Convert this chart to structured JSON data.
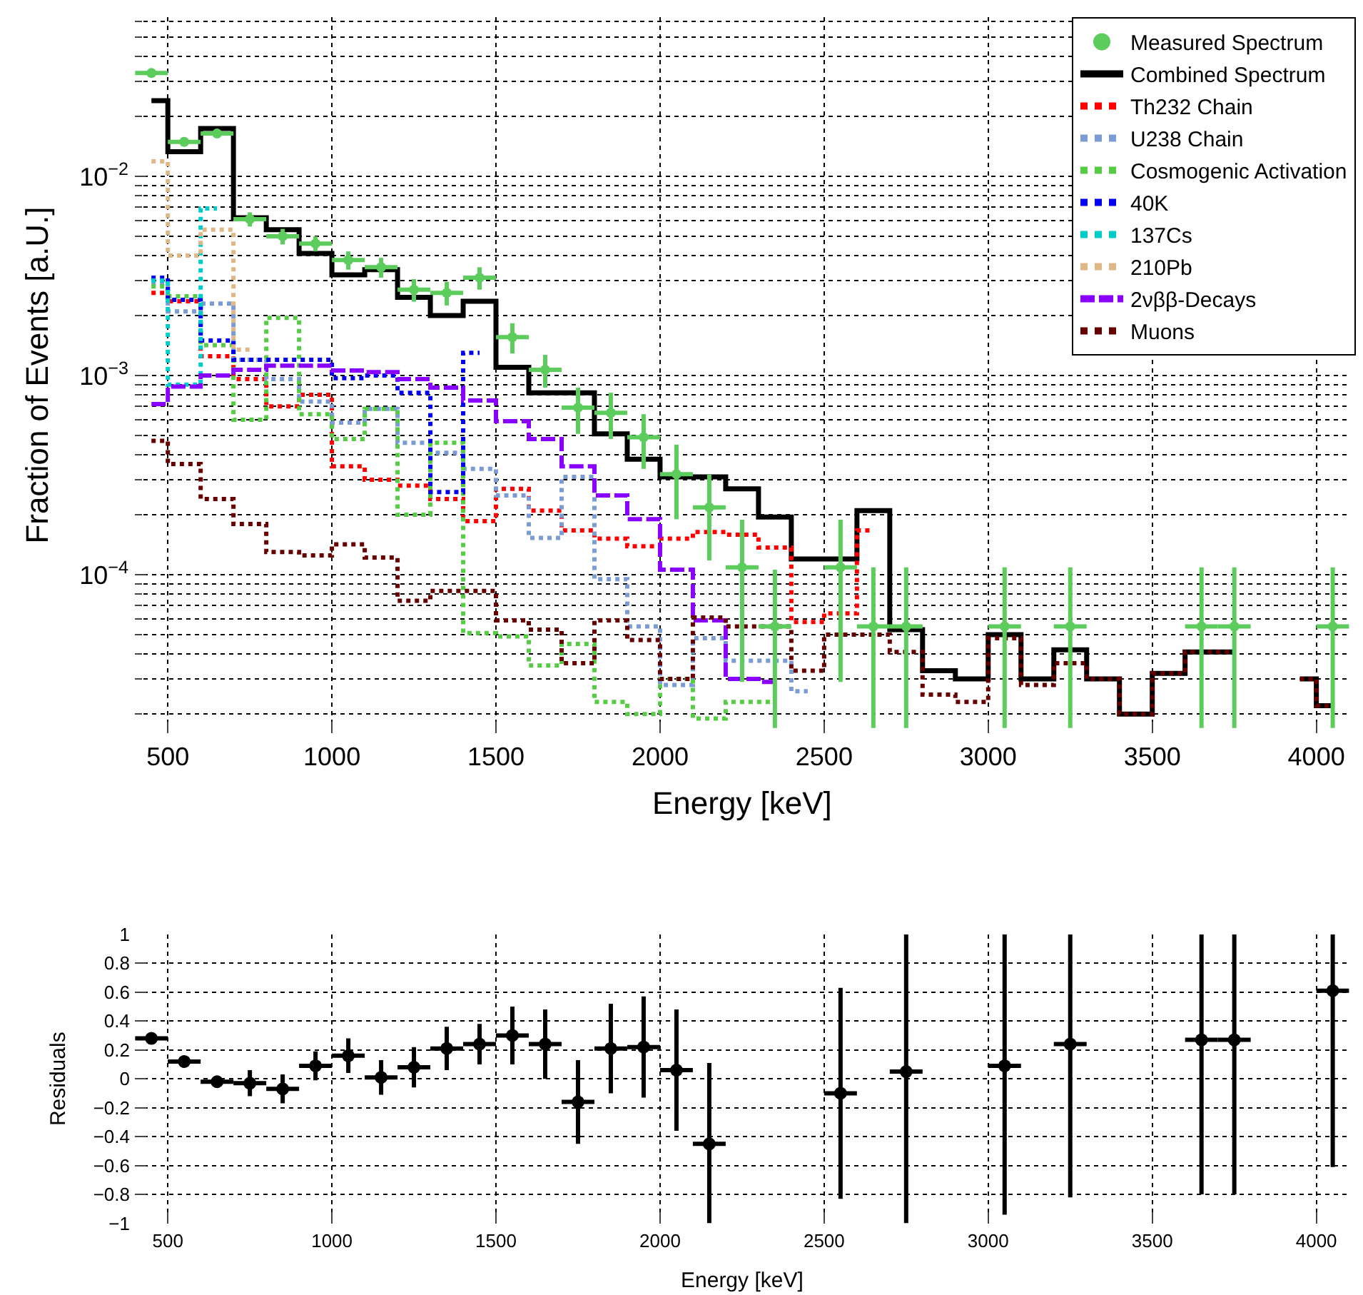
{
  "chart_data": [
    {
      "type": "step",
      "xlabel": "Energy [keV]",
      "ylabel": "Fraction of Events [a.U.]",
      "log": true,
      "grid": true,
      "legend": "top right",
      "xlim": [
        400,
        4100
      ],
      "xticks": [
        500,
        1000,
        1500,
        2000,
        2500,
        3000,
        3500,
        4000
      ],
      "ylim": [
        1.6e-05,
        0.063
      ],
      "yticks": [
        {
          "value": 0.0001,
          "label": "10$^{−4}$"
        },
        {
          "value": 0.001,
          "label": "10$^{−3}$"
        },
        {
          "value": 0.01,
          "label": "10$^{−2}$"
        }
      ],
      "x": [
        450,
        550,
        650,
        750,
        850,
        950,
        1050,
        1150,
        1250,
        1350,
        1450,
        1550,
        1650,
        1750,
        1850,
        1950,
        2050,
        2150,
        2250,
        2350,
        2450,
        2550,
        2650,
        2750,
        2850,
        2950,
        3050,
        3150,
        3250,
        3350,
        3450,
        3550,
        3650,
        3750,
        3850,
        3950,
        4050
      ],
      "series": [
        {
          "name": "Measured Spectrum",
          "type": "scatter",
          "marker": "circle",
          "color": "#5ccc5c",
          "values": [
            0.033,
            0.0149,
            0.0164,
            0.0061,
            0.005,
            0.0046,
            0.0038,
            0.0035,
            0.0027,
            0.0026,
            0.0031,
            0.00156,
            0.00107,
            0.00069,
            0.00065,
            0.00049,
            0.00032,
            0.000218,
            0.000109,
            5.5e-05,
            null,
            0.000109,
            5.5e-05,
            5.5e-05,
            null,
            null,
            5.5e-05,
            null,
            5.5e-05,
            null,
            null,
            null,
            5.5e-05,
            5.5e-05,
            null,
            null,
            5.5e-05
          ],
          "errors": [
            null,
            null,
            null,
            0.0005,
            0.00045,
            0.0004,
            0.0004,
            0.0004,
            0.00035,
            0.00035,
            0.0004,
            0.00027,
            0.0002,
            0.00018,
            0.00017,
            0.00015,
            0.00013,
            0.0001,
            8e-05,
            [
              1.7e-05,
              0.000106
            ],
            null,
            8e-05,
            [
              1.7e-05,
              0.000109
            ],
            [
              1.7e-05,
              0.000109
            ],
            null,
            null,
            [
              1.7e-05,
              0.000109
            ],
            null,
            [
              1.7e-05,
              0.000109
            ],
            null,
            null,
            null,
            [
              1.7e-05,
              0.000109
            ],
            [
              1.7e-05,
              0.000109
            ],
            null,
            null,
            [
              1.7e-05,
              0.000109
            ]
          ],
          "xerrors": [
            50,
            50,
            50,
            50,
            50,
            50,
            50,
            50,
            50,
            50,
            50,
            50,
            50,
            50,
            50,
            50,
            50,
            50,
            50,
            50,
            null,
            50,
            50,
            50,
            null,
            null,
            50,
            null,
            50,
            null,
            null,
            null,
            50,
            50,
            null,
            null,
            50
          ]
        },
        {
          "name": "Combined Spectrum",
          "color": "#000000",
          "line_style": "solid",
          "values": [
            0.024,
            0.0133,
            0.0174,
            0.0062,
            0.0054,
            0.0041,
            0.0032,
            0.0034,
            0.00247,
            0.002,
            0.00236,
            0.0011,
            0.00082,
            0.00082,
            0.00051,
            0.00038,
            0.00031,
            0.00031,
            0.00027,
            0.000195,
            0.00012,
            0.00012,
            0.00021,
            5.3e-05,
            3.3e-05,
            3e-05,
            5e-05,
            3e-05,
            4.2e-05,
            3e-05,
            2e-05,
            3.2e-05,
            4.1e-05,
            4.1e-05,
            null,
            3e-05,
            2.2e-05
          ]
        },
        {
          "name": "Th232 Chain",
          "color": "#ff0000",
          "line_style": "dotted",
          "values": [
            0.0026,
            0.00236,
            0.00125,
            0.00096,
            0.0007,
            0.0008,
            0.00035,
            0.0003,
            0.00028,
            0.00024,
            0.000186,
            0.00027,
            0.00021,
            0.000167,
            0.000152,
            0.000139,
            0.000152,
            0.000164,
            0.000159,
            0.000137,
            5.8e-05,
            6.4e-05,
            0.000167,
            null,
            null,
            null,
            null,
            null,
            null,
            null,
            null,
            null,
            null,
            null,
            null,
            null,
            null
          ]
        },
        {
          "name": "U238 Chain",
          "color": "#7b9bd4",
          "line_style": "dotted",
          "values": [
            0.0029,
            0.0021,
            0.0023,
            0.0012,
            0.00096,
            0.00074,
            0.00058,
            0.00068,
            0.00046,
            0.00041,
            0.00034,
            0.00025,
            0.000153,
            0.00031,
            9.5e-05,
            5.5e-05,
            2.8e-05,
            4.8e-05,
            3.7e-05,
            3.7e-05,
            2.6e-05,
            null,
            null,
            null,
            null,
            null,
            null,
            null,
            null,
            null,
            null,
            null,
            null,
            null,
            null,
            null,
            null
          ]
        },
        {
          "name": "Cosmogenic Activation",
          "color": "#55cc44",
          "line_style": "dotted",
          "values": [
            0.0028,
            0.0025,
            0.00142,
            0.0006,
            0.00195,
            0.00064,
            0.00048,
            0.00068,
            0.0002,
            0.00046,
            5.1e-05,
            4.9e-05,
            3.5e-05,
            4.5e-05,
            2.3e-05,
            2e-05,
            3e-05,
            1.9e-05,
            2.3e-05,
            2.3e-05,
            null,
            null,
            null,
            null,
            null,
            null,
            null,
            null,
            null,
            null,
            null,
            null,
            null,
            null,
            null,
            null,
            null
          ]
        },
        {
          "name": "40K",
          "color": "#0000ee",
          "line_style": "dotted",
          "values": [
            0.0031,
            0.0024,
            0.0015,
            0.0012,
            0.0012,
            0.0012,
            0.00097,
            0.001,
            0.00082,
            0.00026,
            0.0013,
            null,
            null,
            null,
            null,
            null,
            null,
            null,
            null,
            null,
            null,
            null,
            null,
            null,
            null,
            null,
            null,
            null,
            null,
            null,
            null,
            null,
            null,
            null,
            null,
            null,
            null
          ]
        },
        {
          "name": "137Cs",
          "color": "#00cccc",
          "line_style": "dotted",
          "values": [
            0.003,
            0.0009,
            0.0069,
            null,
            null,
            null,
            null,
            null,
            null,
            null,
            null,
            null,
            null,
            null,
            null,
            null,
            null,
            null,
            null,
            null,
            null,
            null,
            null,
            null,
            null,
            null,
            null,
            null,
            null,
            null,
            null,
            null,
            null,
            null,
            null,
            null,
            null
          ]
        },
        {
          "name": "210Pb",
          "color": "#deb887",
          "line_style": "dotted",
          "values": [
            0.0119,
            0.004,
            0.0054,
            0.00135,
            null,
            null,
            null,
            null,
            null,
            null,
            null,
            null,
            null,
            null,
            null,
            null,
            null,
            null,
            null,
            null,
            null,
            null,
            null,
            null,
            null,
            null,
            null,
            null,
            null,
            null,
            null,
            null,
            null,
            null,
            null,
            null,
            null
          ]
        },
        {
          "name": "2νββ-Decays",
          "color": "#8a00ff",
          "line_style": "dashed",
          "values": [
            0.00072,
            0.00088,
            0.001,
            0.00107,
            0.00112,
            0.00112,
            0.00106,
            0.00104,
            0.00096,
            0.00087,
            0.00075,
            0.00059,
            0.00048,
            0.00035,
            0.00025,
            0.00019,
            0.000106,
            5.9e-05,
            3e-05,
            2.9e-05,
            null,
            null,
            null,
            null,
            null,
            null,
            null,
            null,
            null,
            null,
            null,
            null,
            null,
            null,
            null,
            null,
            null
          ]
        },
        {
          "name": "Muons",
          "color": "#660000",
          "line_style": "dotted",
          "values": [
            0.00047,
            0.00036,
            0.00024,
            0.00018,
            0.00013,
            0.000125,
            0.000142,
            0.000122,
            7.4e-05,
            8.3e-05,
            8.3e-05,
            5.9e-05,
            5.3e-05,
            3.6e-05,
            5.9e-05,
            4.7e-05,
            3e-05,
            6.1e-05,
            5.5e-05,
            5.5e-05,
            3.3e-05,
            5e-05,
            5e-05,
            4.1e-05,
            2.5e-05,
            2.3e-05,
            4.8e-05,
            2.8e-05,
            3.6e-05,
            3e-05,
            2e-05,
            3.2e-05,
            4.1e-05,
            4.1e-05,
            null,
            3e-05,
            2.2e-05
          ]
        }
      ]
    },
    {
      "type": "scatter",
      "xlabel": "Energy [keV]",
      "ylabel": "Residuals",
      "grid": true,
      "marker": "circle",
      "color": "#000000",
      "xlim": [
        400,
        4100
      ],
      "xticks": [
        500,
        1000,
        1500,
        2000,
        2500,
        3000,
        3500,
        4000
      ],
      "ylim": [
        -1,
        1
      ],
      "yticks": [
        {
          "value": -1,
          "label": "−1"
        },
        {
          "value": -0.8,
          "label": "−0.8"
        },
        {
          "value": -0.6,
          "label": "−0.6"
        },
        {
          "value": -0.4,
          "label": "−0.4"
        },
        {
          "value": -0.2,
          "label": "−0.2"
        },
        0,
        0.2,
        0.4,
        0.6,
        0.8,
        1
      ],
      "x": [
        450,
        550,
        650,
        750,
        850,
        950,
        1050,
        1150,
        1250,
        1350,
        1450,
        1550,
        1650,
        1750,
        1850,
        1950,
        2050,
        2150,
        2550,
        2750,
        3050,
        3250,
        3650,
        3750,
        4050
      ],
      "values": [
        0.28,
        0.12,
        -0.02,
        -0.03,
        -0.07,
        0.09,
        0.16,
        0.01,
        0.08,
        0.21,
        0.24,
        0.3,
        0.24,
        -0.16,
        0.21,
        0.22,
        0.06,
        -0.45,
        -0.1,
        0.05,
        0.09,
        0.24,
        0.27,
        0.27,
        0.61
      ],
      "errors": [
        0.02,
        0.03,
        0.04,
        0.09,
        0.1,
        0.1,
        0.12,
        0.12,
        0.14,
        0.15,
        0.14,
        0.2,
        0.24,
        0.29,
        0.31,
        0.35,
        0.42,
        [
          -1,
          0.11
        ],
        0.73,
        [
          -1,
          1
        ],
        [
          -0.94,
          1
        ],
        [
          -0.82,
          1
        ],
        [
          -0.8,
          1
        ],
        [
          -0.8,
          1
        ],
        [
          -0.61,
          1
        ]
      ],
      "xerrors": [
        50,
        50,
        50,
        50,
        50,
        50,
        50,
        50,
        50,
        50,
        50,
        50,
        50,
        50,
        50,
        50,
        50,
        50,
        50,
        50,
        50,
        50,
        50,
        50,
        50
      ]
    }
  ]
}
